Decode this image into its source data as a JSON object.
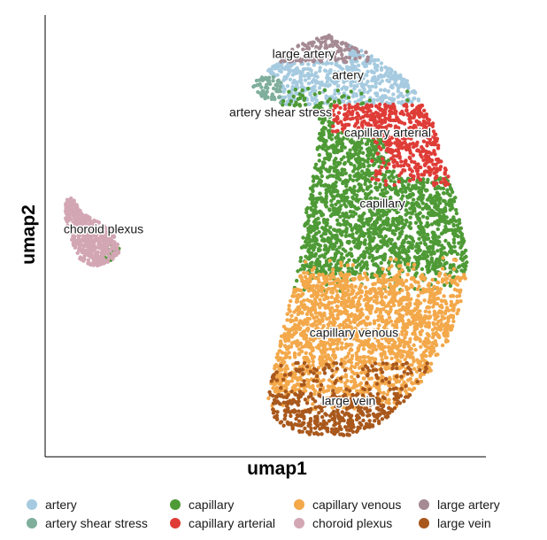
{
  "chart_data": {
    "type": "scatter",
    "title": "",
    "xlabel": "umap1",
    "ylabel": "umap2",
    "grid": false,
    "legend_position": "bottom",
    "series": [
      {
        "name": "artery",
        "color": "#a6cbe0"
      },
      {
        "name": "artery shear stress",
        "color": "#7fae9c"
      },
      {
        "name": "capillary",
        "color": "#4e9a36"
      },
      {
        "name": "capillary arterial",
        "color": "#df3c37"
      },
      {
        "name": "capillary venous",
        "color": "#f3a84a"
      },
      {
        "name": "choroid plexus",
        "color": "#d3a6b4"
      },
      {
        "name": "large artery",
        "color": "#a58a94"
      },
      {
        "name": "large vein",
        "color": "#a9581c"
      }
    ],
    "cluster_labels": [
      {
        "text": "large artery",
        "series": "large artery"
      },
      {
        "text": "artery",
        "series": "artery"
      },
      {
        "text": "artery shear stress",
        "series": "artery shear stress"
      },
      {
        "text": "capillary arterial",
        "series": "capillary arterial"
      },
      {
        "text": "capillary",
        "series": "capillary"
      },
      {
        "text": "choroid plexus",
        "series": "choroid plexus"
      },
      {
        "text": "capillary venous",
        "series": "capillary venous"
      },
      {
        "text": "large vein",
        "series": "large vein"
      }
    ]
  }
}
